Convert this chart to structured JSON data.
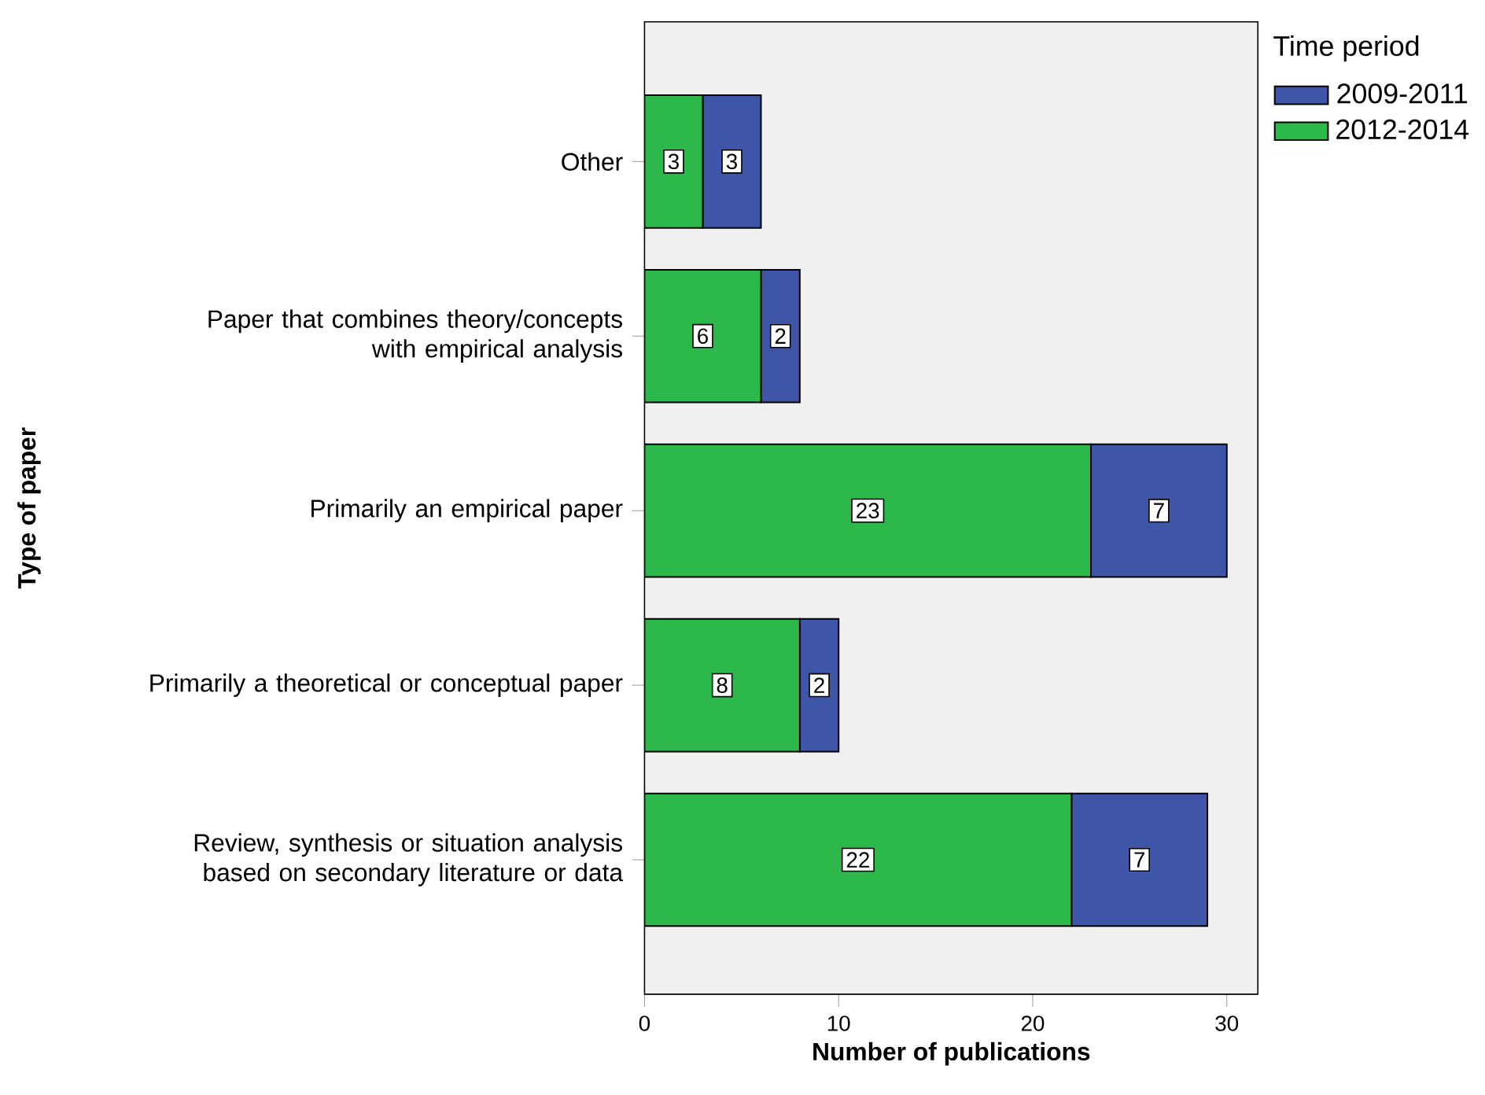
{
  "chart_data": {
    "type": "bar",
    "orientation": "horizontal",
    "stacked": true,
    "xlabel": "Number of publications",
    "ylabel": "Type of paper",
    "legend_title": "Time period",
    "categories": [
      "Other",
      "Paper that combines theory/concepts with empirical analysis",
      "Primarily an empirical paper",
      "Primarily a theoretical or conceptual paper",
      "Review, synthesis or situation analysis based on secondary literature or data"
    ],
    "series": [
      {
        "name": "2012-2014",
        "color": "#2db84b",
        "values": [
          3,
          6,
          23,
          8,
          22
        ]
      },
      {
        "name": "2009-2011",
        "color": "#3f56a8",
        "values": [
          3,
          2,
          7,
          2,
          7
        ]
      }
    ],
    "xlim": [
      0,
      31.6
    ],
    "xticks": [
      0,
      10,
      20,
      30
    ],
    "data_labels": true,
    "legend": "top right",
    "grid": false
  }
}
